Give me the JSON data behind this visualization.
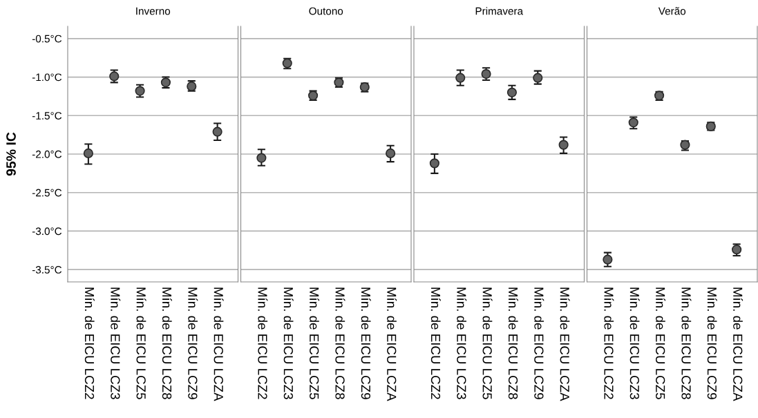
{
  "chart_data": [
    {
      "type": "scatter",
      "title": "Inverno",
      "ylabel": "95% IC",
      "categories": [
        "Mín. de EICU LCZ2",
        "Mín. de EICU LCZ3",
        "Mín. de EICU LCZ5",
        "Mín. de EICU LCZ8",
        "Mín. de EICU LCZ9",
        "Mín. de EICU LCZA"
      ],
      "values": [
        -1.99,
        -0.99,
        -1.18,
        -1.07,
        -1.12,
        -1.71
      ],
      "errors": [
        [
          -2.13,
          -1.87
        ],
        [
          -1.07,
          -0.91
        ],
        [
          -1.26,
          -1.1
        ],
        [
          -1.14,
          -1.0
        ],
        [
          -1.18,
          -1.05
        ],
        [
          -1.82,
          -1.6
        ]
      ],
      "color": "#626262",
      "marker": "circle",
      "ylim": [
        -3.66,
        -0.34
      ],
      "yticks": [
        {
          "value": -3.5,
          "label": "-3.5°C"
        },
        {
          "value": -3.0,
          "label": "-3.0°C"
        },
        {
          "value": -2.5,
          "label": "-2.5°C"
        },
        {
          "value": -2.0,
          "label": "-2.0°C"
        },
        {
          "value": -1.5,
          "label": "-1.5°C"
        },
        {
          "value": -1.0,
          "label": "-1.0°C"
        },
        {
          "value": -0.5,
          "label": "-0.5°C"
        }
      ],
      "grid": "y"
    },
    {
      "type": "scatter",
      "title": "Outono",
      "categories": [
        "Mín. de EICU LCZ2",
        "Mín. de EICU LCZ3",
        "Mín. de EICU LCZ5",
        "Mín. de EICU LCZ8",
        "Mín. de EICU LCZ9",
        "Mín. de EICU LCZA"
      ],
      "values": [
        -2.05,
        -0.82,
        -1.24,
        -1.07,
        -1.13,
        -1.99
      ],
      "errors": [
        [
          -2.15,
          -1.94
        ],
        [
          -0.89,
          -0.76
        ],
        [
          -1.3,
          -1.18
        ],
        [
          -1.13,
          -1.01
        ],
        [
          -1.19,
          -1.08
        ],
        [
          -2.1,
          -1.89
        ]
      ],
      "color": "#626262",
      "marker": "circle",
      "ylim": [
        -3.66,
        -0.34
      ],
      "yticks": [
        -3.5,
        -3.0,
        -2.5,
        -2.0,
        -1.5,
        -1.0,
        -0.5
      ],
      "grid": "y",
      "tick_labels": "x"
    },
    {
      "type": "scatter",
      "title": "Primavera",
      "categories": [
        "Mín. de EICU LCZ2",
        "Mín. de EICU LCZ3",
        "Mín. de EICU LCZ5",
        "Mín. de EICU LCZ8",
        "Mín. de EICU LCZ9",
        "Mín. de EICU LCZA"
      ],
      "values": [
        -2.12,
        -1.01,
        -0.96,
        -1.2,
        -1.01,
        -1.88
      ],
      "errors": [
        [
          -2.25,
          -2.0
        ],
        [
          -1.11,
          -0.91
        ],
        [
          -1.04,
          -0.88
        ],
        [
          -1.29,
          -1.11
        ],
        [
          -1.09,
          -0.92
        ],
        [
          -1.99,
          -1.78
        ]
      ],
      "color": "#626262",
      "marker": "circle",
      "ylim": [
        -3.66,
        -0.34
      ],
      "yticks": [
        -3.5,
        -3.0,
        -2.5,
        -2.0,
        -1.5,
        -1.0,
        -0.5
      ],
      "grid": "y",
      "tick_labels": "x"
    },
    {
      "type": "scatter",
      "title": "Verão",
      "categories": [
        "Mín. de EICU LCZ2",
        "Mín. de EICU LCZ3",
        "Mín. de EICU LCZ5",
        "Mín. de EICU LCZ8",
        "Mín. de EICU LCZ9",
        "Mín. de EICU LCZA"
      ],
      "values": [
        -3.37,
        -1.59,
        -1.24,
        -1.88,
        -1.64,
        -3.24
      ],
      "errors": [
        [
          -3.46,
          -3.28
        ],
        [
          -1.67,
          -1.52
        ],
        [
          -1.3,
          -1.19
        ],
        [
          -1.95,
          -1.83
        ],
        [
          -1.69,
          -1.59
        ],
        [
          -3.32,
          -3.17
        ]
      ],
      "color": "#626262",
      "marker": "circle",
      "ylim": [
        -3.66,
        -0.34
      ],
      "yticks": [
        -3.5,
        -3.0,
        -2.5,
        -2.0,
        -1.5,
        -1.0,
        -0.5
      ],
      "grid": "y",
      "tick_labels": "x"
    }
  ]
}
